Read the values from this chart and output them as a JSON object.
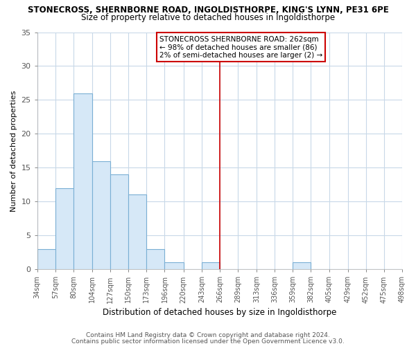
{
  "title": "STONECROSS, SHERNBORNE ROAD, INGOLDISTHORPE, KING'S LYNN, PE31 6PE",
  "subtitle": "Size of property relative to detached houses in Ingoldisthorpe",
  "xlabel": "Distribution of detached houses by size in Ingoldisthorpe",
  "ylabel": "Number of detached properties",
  "bin_edges": [
    34,
    57,
    80,
    104,
    127,
    150,
    173,
    196,
    220,
    243,
    266,
    289,
    313,
    336,
    359,
    382,
    405,
    429,
    452,
    475,
    498
  ],
  "bin_labels": [
    "34sqm",
    "57sqm",
    "80sqm",
    "104sqm",
    "127sqm",
    "150sqm",
    "173sqm",
    "196sqm",
    "220sqm",
    "243sqm",
    "266sqm",
    "289sqm",
    "313sqm",
    "336sqm",
    "359sqm",
    "382sqm",
    "405sqm",
    "429sqm",
    "452sqm",
    "475sqm",
    "498sqm"
  ],
  "counts": [
    3,
    12,
    26,
    16,
    14,
    11,
    3,
    1,
    0,
    1,
    0,
    0,
    0,
    0,
    1,
    0,
    0,
    0,
    0,
    0
  ],
  "bar_color": "#d6e8f7",
  "bar_edgecolor": "#7aafd4",
  "vline_x": 266,
  "vline_color": "#cc0000",
  "annotation_line1": "STONECROSS SHERNBORNE ROAD: 262sqm",
  "annotation_line2": "← 98% of detached houses are smaller (86)",
  "annotation_line3": "2% of semi-detached houses are larger (2) →",
  "annotation_box_color": "#ffffff",
  "annotation_box_edgecolor": "#cc0000",
  "ylim": [
    0,
    35
  ],
  "yticks": [
    0,
    5,
    10,
    15,
    20,
    25,
    30,
    35
  ],
  "fig_background_color": "#ffffff",
  "plot_background_color": "#ffffff",
  "grid_color": "#c8d8e8",
  "footer1": "Contains HM Land Registry data © Crown copyright and database right 2024.",
  "footer2": "Contains public sector information licensed under the Open Government Licence v3.0."
}
